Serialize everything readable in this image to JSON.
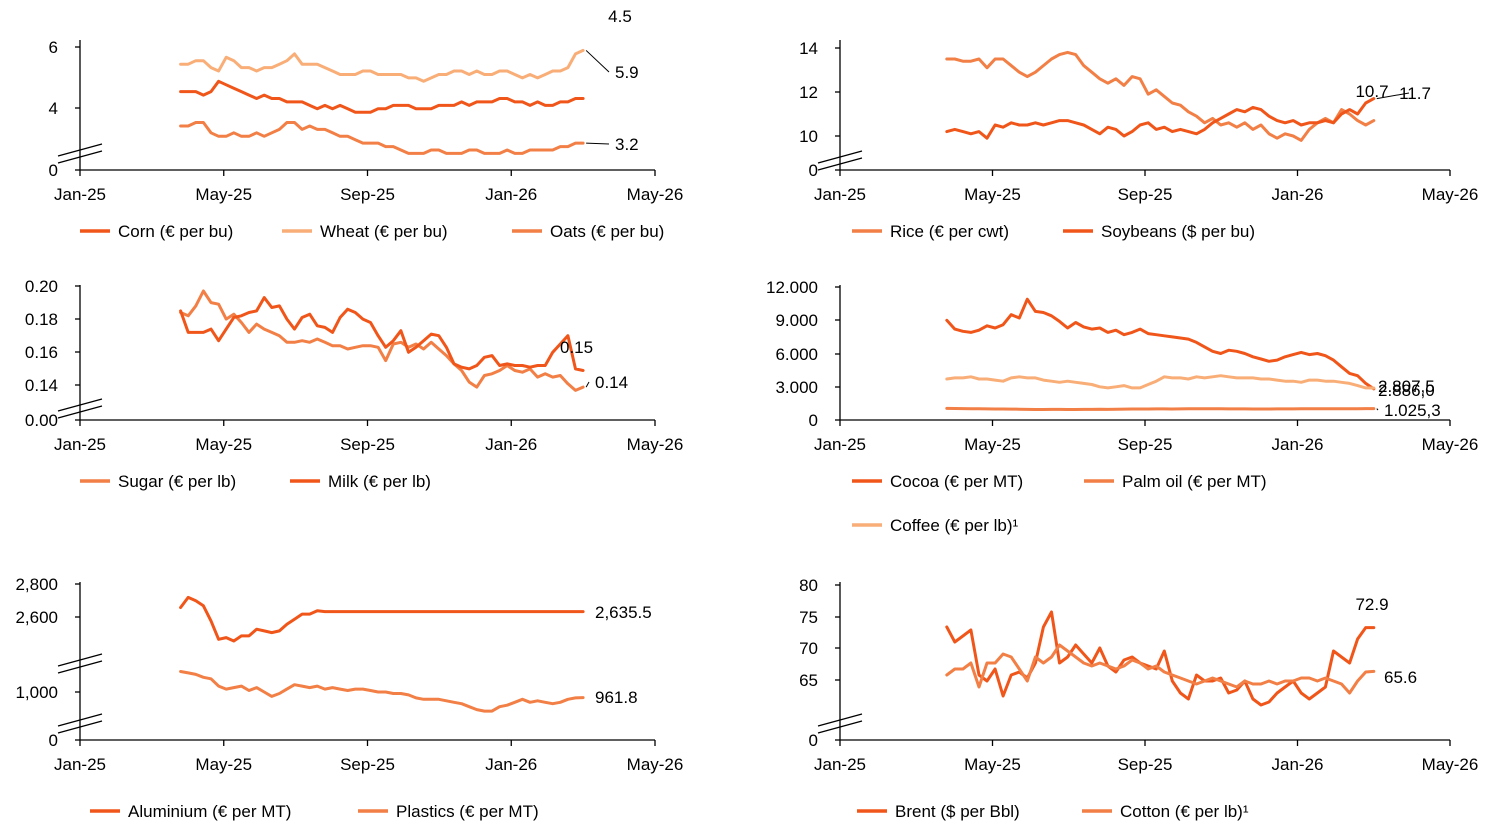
{
  "x_ticks": [
    "Jan-25",
    "May-25",
    "Sep-25",
    "Jan-26",
    "May-26"
  ],
  "colors": {
    "dark": "#f0561a",
    "light": "#f9ae78",
    "mid": "#f27f45",
    "axis": "#000000"
  },
  "chart_data": [
    {
      "type": "line",
      "y_ticks": [
        "0",
        "4",
        "6"
      ],
      "axis_break": true,
      "series": [
        {
          "name": "Corn (€ per bu)",
          "color": "#f0561a",
          "end_label": "4.5",
          "values": [
            4.7,
            4.7,
            4.7,
            4.6,
            4.7,
            5.0,
            4.9,
            4.8,
            4.7,
            4.6,
            4.5,
            4.6,
            4.5,
            4.5,
            4.4,
            4.4,
            4.4,
            4.3,
            4.2,
            4.3,
            4.2,
            4.3,
            4.2,
            4.1,
            4.1,
            4.1,
            4.2,
            4.2,
            4.3,
            4.3,
            4.3,
            4.2,
            4.2,
            4.2,
            4.3,
            4.3,
            4.3,
            4.4,
            4.3,
            4.4,
            4.4,
            4.4,
            4.5,
            4.5,
            4.4,
            4.4,
            4.3,
            4.4,
            4.3,
            4.3,
            4.4,
            4.4,
            4.5,
            4.5
          ]
        },
        {
          "name": "Wheat (€ per bu)",
          "color": "#f9ae78",
          "end_label": "5.9",
          "values": [
            5.5,
            5.5,
            5.6,
            5.6,
            5.4,
            5.3,
            5.7,
            5.6,
            5.4,
            5.4,
            5.3,
            5.4,
            5.4,
            5.5,
            5.6,
            5.8,
            5.5,
            5.5,
            5.5,
            5.4,
            5.3,
            5.2,
            5.2,
            5.2,
            5.3,
            5.3,
            5.2,
            5.2,
            5.2,
            5.2,
            5.1,
            5.1,
            5.0,
            5.1,
            5.2,
            5.2,
            5.3,
            5.3,
            5.2,
            5.3,
            5.2,
            5.2,
            5.3,
            5.3,
            5.2,
            5.1,
            5.2,
            5.1,
            5.2,
            5.3,
            5.3,
            5.4,
            5.8,
            5.9
          ]
        },
        {
          "name": "Oats (€ per bu)",
          "color": "#f27f45",
          "end_label": "3.2",
          "values": [
            3.7,
            3.7,
            3.8,
            3.8,
            3.5,
            3.4,
            3.4,
            3.5,
            3.4,
            3.4,
            3.5,
            3.4,
            3.5,
            3.6,
            3.8,
            3.8,
            3.6,
            3.7,
            3.6,
            3.6,
            3.5,
            3.4,
            3.4,
            3.3,
            3.2,
            3.2,
            3.2,
            3.1,
            3.1,
            3.0,
            2.9,
            2.9,
            2.9,
            3.0,
            3.0,
            2.9,
            2.9,
            2.9,
            3.0,
            3.0,
            2.9,
            2.9,
            2.9,
            3.0,
            2.9,
            2.9,
            3.0,
            3.0,
            3.0,
            3.0,
            3.1,
            3.1,
            3.2,
            3.2
          ]
        }
      ]
    },
    {
      "type": "line",
      "y_ticks": [
        "0",
        "10",
        "12",
        "14"
      ],
      "axis_break": true,
      "series": [
        {
          "name": "Rice (€ per cwt)",
          "color": "#f27f45",
          "end_label": "10.7",
          "values": [
            13.5,
            13.5,
            13.4,
            13.4,
            13.5,
            13.1,
            13.5,
            13.5,
            13.2,
            12.9,
            12.7,
            12.9,
            13.2,
            13.5,
            13.7,
            13.8,
            13.7,
            13.2,
            12.9,
            12.6,
            12.4,
            12.6,
            12.3,
            12.7,
            12.6,
            11.9,
            12.1,
            11.8,
            11.5,
            11.4,
            11.1,
            10.9,
            10.6,
            10.8,
            10.5,
            10.6,
            10.4,
            10.6,
            10.3,
            10.5,
            10.1,
            9.9,
            10.1,
            10.0,
            9.8,
            10.3,
            10.6,
            10.8,
            10.6,
            11.2,
            11.0,
            10.7,
            10.5,
            10.7
          ]
        },
        {
          "name": "Soybeans ($ per bu)",
          "color": "#f0561a",
          "end_label": "11.7",
          "values": [
            10.2,
            10.3,
            10.2,
            10.1,
            10.2,
            9.9,
            10.5,
            10.4,
            10.6,
            10.5,
            10.5,
            10.6,
            10.5,
            10.6,
            10.7,
            10.7,
            10.6,
            10.5,
            10.3,
            10.1,
            10.4,
            10.3,
            10.0,
            10.2,
            10.5,
            10.6,
            10.3,
            10.4,
            10.2,
            10.3,
            10.2,
            10.1,
            10.3,
            10.6,
            10.8,
            11.0,
            11.2,
            11.1,
            11.3,
            11.2,
            10.9,
            10.7,
            10.6,
            10.7,
            10.5,
            10.6,
            10.6,
            10.7,
            10.6,
            11.0,
            11.2,
            11.0,
            11.5,
            11.7
          ]
        }
      ]
    },
    {
      "type": "line",
      "y_ticks": [
        "0.00",
        "0.14",
        "0.16",
        "0.18",
        "0.20"
      ],
      "axis_break": true,
      "series": [
        {
          "name": "Sugar (€ per lb)",
          "color": "#f27f45",
          "end_label": "0.14",
          "values": [
            0.184,
            0.182,
            0.188,
            0.197,
            0.19,
            0.189,
            0.18,
            0.183,
            0.178,
            0.172,
            0.177,
            0.174,
            0.172,
            0.17,
            0.166,
            0.166,
            0.167,
            0.166,
            0.168,
            0.166,
            0.164,
            0.164,
            0.162,
            0.163,
            0.164,
            0.164,
            0.163,
            0.155,
            0.165,
            0.166,
            0.163,
            0.165,
            0.162,
            0.166,
            0.162,
            0.158,
            0.153,
            0.149,
            0.142,
            0.139,
            0.146,
            0.147,
            0.149,
            0.152,
            0.149,
            0.148,
            0.15,
            0.145,
            0.147,
            0.145,
            0.146,
            0.141,
            0.137,
            0.139
          ]
        },
        {
          "name": "Milk (€ per lb)",
          "color": "#f0561a",
          "end_label": "0.15",
          "values": [
            0.185,
            0.172,
            0.172,
            0.172,
            0.174,
            0.167,
            0.174,
            0.181,
            0.182,
            0.184,
            0.185,
            0.193,
            0.187,
            0.188,
            0.18,
            0.174,
            0.181,
            0.183,
            0.176,
            0.175,
            0.172,
            0.181,
            0.186,
            0.184,
            0.18,
            0.178,
            0.17,
            0.163,
            0.167,
            0.173,
            0.16,
            0.163,
            0.167,
            0.171,
            0.17,
            0.163,
            0.153,
            0.151,
            0.15,
            0.152,
            0.157,
            0.158,
            0.152,
            0.153,
            0.152,
            0.152,
            0.151,
            0.152,
            0.152,
            0.16,
            0.165,
            0.17,
            0.15,
            0.149
          ]
        }
      ]
    },
    {
      "type": "line",
      "y_ticks": [
        "0",
        "3.000",
        "6.000",
        "9.000",
        "12.000"
      ],
      "axis_break": false,
      "series": [
        {
          "name": "Cocoa (€ per MT)",
          "color": "#f0561a",
          "end_label": "2.807,5",
          "values": [
            9000,
            8200,
            8000,
            7900,
            8100,
            8500,
            8300,
            8600,
            9500,
            9200,
            10900,
            9800,
            9700,
            9400,
            8900,
            8300,
            8800,
            8400,
            8200,
            8300,
            7900,
            8100,
            7700,
            7900,
            8200,
            7800,
            7700,
            7600,
            7500,
            7400,
            7300,
            7000,
            6600,
            6200,
            6000,
            6300,
            6200,
            6000,
            5700,
            5500,
            5300,
            5400,
            5700,
            5900,
            6100,
            5900,
            6000,
            5800,
            5400,
            4800,
            4200,
            4000,
            3300,
            2808
          ]
        },
        {
          "name": "Palm oil (€ per MT)",
          "color": "#f27f45",
          "end_label": "1.025,3",
          "values": [
            1050,
            1040,
            1030,
            1020,
            1010,
            1000,
            990,
            990,
            980,
            970,
            960,
            950,
            950,
            960,
            960,
            950,
            950,
            960,
            960,
            970,
            960,
            970,
            980,
            990,
            990,
            990,
            1000,
            1000,
            990,
            1000,
            1010,
            1010,
            1020,
            1010,
            1010,
            1000,
            1000,
            1000,
            990,
            990,
            990,
            1000,
            1000,
            1000,
            1010,
            1010,
            1010,
            1020,
            1020,
            1020,
            1020,
            1020,
            1025,
            1025
          ]
        },
        {
          "name": "Coffee (€ per lb)¹",
          "color": "#f9ae78",
          "end_label": "2.886,0",
          "values": [
            3700,
            3800,
            3800,
            3900,
            3700,
            3700,
            3600,
            3500,
            3800,
            3900,
            3800,
            3800,
            3600,
            3500,
            3400,
            3500,
            3400,
            3300,
            3200,
            3000,
            2900,
            3000,
            3100,
            2900,
            2900,
            3200,
            3500,
            3900,
            3800,
            3800,
            3700,
            3900,
            3800,
            3900,
            4000,
            3900,
            3800,
            3800,
            3800,
            3700,
            3700,
            3600,
            3500,
            3500,
            3400,
            3600,
            3600,
            3500,
            3500,
            3400,
            3300,
            3100,
            2900,
            2886
          ]
        }
      ]
    },
    {
      "type": "line",
      "y_ticks": [
        "0",
        "1,000",
        "2,600",
        "2,800"
      ],
      "axis_break": true,
      "series": [
        {
          "name": "Aluminium (€ per MT)",
          "color": "#f0561a",
          "end_label": "2,635.5",
          "values": [
            2660,
            2720,
            2700,
            2670,
            2580,
            2470,
            2480,
            2460,
            2490,
            2490,
            2530,
            2520,
            2510,
            2520,
            2560,
            2590,
            2620,
            2620,
            2640,
            2635,
            2635,
            2635,
            2635,
            2635,
            2635,
            2635,
            2635,
            2635,
            2635,
            2635,
            2635,
            2635,
            2635,
            2635,
            2635,
            2635,
            2635,
            2635,
            2635,
            2635,
            2635,
            2635,
            2635,
            2635,
            2635,
            2635,
            2635,
            2635,
            2635,
            2635,
            2635,
            2635,
            2635,
            2635
          ]
        },
        {
          "name": "Plastics (€ per MT)",
          "color": "#f27f45",
          "end_label": "961.8",
          "values": [
            1140,
            1130,
            1120,
            1100,
            1090,
            1040,
            1020,
            1030,
            1040,
            1010,
            1030,
            1000,
            970,
            990,
            1020,
            1050,
            1040,
            1030,
            1040,
            1020,
            1030,
            1020,
            1010,
            1020,
            1020,
            1010,
            1000,
            1000,
            990,
            990,
            980,
            960,
            950,
            950,
            950,
            940,
            930,
            920,
            900,
            880,
            870,
            870,
            900,
            910,
            930,
            950,
            930,
            940,
            930,
            920,
            930,
            950,
            960,
            962
          ]
        }
      ]
    },
    {
      "type": "line",
      "y_ticks": [
        "0",
        "65",
        "70",
        "75",
        "80"
      ],
      "axis_break": true,
      "series": [
        {
          "name": "Brent ($ per Bbl)",
          "color": "#f0561a",
          "end_label": "72.9",
          "values": [
            73,
            70.5,
            71.5,
            72.5,
            65,
            64,
            66,
            61.5,
            65,
            65.5,
            64.5,
            67,
            73,
            75.5,
            67,
            68,
            70,
            68.5,
            67,
            69.5,
            66.5,
            65.5,
            67.5,
            68,
            67,
            66.5,
            66,
            69,
            64,
            62,
            61,
            65,
            64,
            64,
            64.5,
            62,
            62.5,
            64,
            61,
            60,
            60.5,
            62,
            63,
            64,
            62,
            61,
            62,
            63,
            69,
            68,
            67,
            71,
            72.9,
            72.9
          ]
        },
        {
          "name": "Cotton (€ per lb)¹",
          "color": "#f27f45",
          "end_label": "65.6",
          "values": [
            65,
            66,
            66,
            67,
            63,
            67,
            67,
            68.5,
            68,
            66,
            64,
            68,
            67,
            68,
            70,
            69,
            68,
            67,
            66.5,
            67,
            66.5,
            66,
            66.5,
            67.5,
            67,
            66,
            66.5,
            65.5,
            65,
            64.5,
            64,
            63.5,
            64,
            64.5,
            64,
            63.5,
            63,
            64,
            63.5,
            63.5,
            64,
            63.5,
            64,
            64,
            64.5,
            64.5,
            64,
            64.5,
            64,
            63.5,
            62,
            64,
            65.5,
            65.6
          ]
        }
      ]
    }
  ]
}
